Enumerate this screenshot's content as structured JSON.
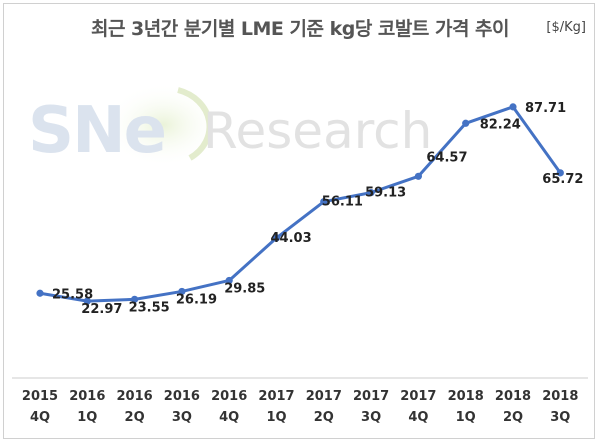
{
  "title": "최근 3년간 분기별 LME 기준 kg당 코발트 가격 추이",
  "unit": "[$/Kg]",
  "watermark_text": "SNE Research",
  "colors": {
    "line": "#4472c4",
    "axis": "#cccccc"
  },
  "chart_data": {
    "type": "line",
    "title": "최근 3년간 분기별 LME 기준 kg당 코발트 가격 추이",
    "ylabel": "[$/Kg]",
    "categories": [
      [
        "2015",
        "4Q"
      ],
      [
        "2016",
        "1Q"
      ],
      [
        "2016",
        "2Q"
      ],
      [
        "2016",
        "3Q"
      ],
      [
        "2016",
        "4Q"
      ],
      [
        "2017",
        "1Q"
      ],
      [
        "2017",
        "2Q"
      ],
      [
        "2017",
        "3Q"
      ],
      [
        "2017",
        "4Q"
      ],
      [
        "2018",
        "1Q"
      ],
      [
        "2018",
        "2Q"
      ],
      [
        "2018",
        "3Q"
      ]
    ],
    "series": [
      {
        "values": [
          25.58,
          22.97,
          23.55,
          26.19,
          29.85,
          44.03,
          56.11,
          59.13,
          64.57,
          82.24,
          87.71,
          65.72
        ]
      }
    ],
    "ylim": [
      0,
      100
    ],
    "grid": false,
    "legend": "none",
    "data_labels": [
      "25.58",
      "22.97",
      "23.55",
      "26.19",
      "29.85",
      "44.03",
      "56.11",
      "59.13",
      "64.57",
      "82.24",
      "87.71",
      "65.72"
    ]
  }
}
